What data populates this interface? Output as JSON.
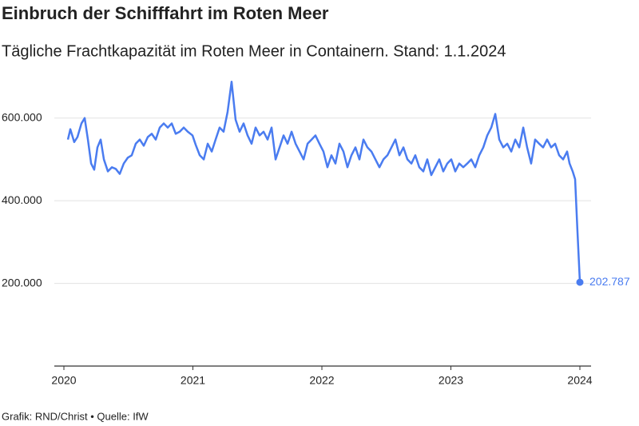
{
  "chart_data": {
    "type": "line",
    "title": "Einbruch der Schifffahrt im Roten Meer",
    "subtitle": "Tägliche Frachtkapazität im Roten Meer in Containern. Stand: 1.1.2024",
    "source": "Grafik: RND/Christ • Quelle: IfW",
    "color": "#4a7cf0",
    "x": [
      2020.031,
      2020.05,
      2020.08,
      2020.105,
      2020.136,
      2020.161,
      2020.186,
      2020.211,
      2020.235,
      2020.26,
      2020.285,
      2020.31,
      2020.341,
      2020.372,
      2020.402,
      2020.433,
      2020.464,
      2020.495,
      2020.526,
      2020.557,
      2020.588,
      2020.619,
      2020.65,
      2020.681,
      2020.712,
      2020.743,
      2020.774,
      2020.805,
      2020.836,
      2020.867,
      2020.898,
      2020.929,
      2020.96,
      2020.997,
      2021.022,
      2021.053,
      2021.084,
      2021.115,
      2021.146,
      2021.176,
      2021.207,
      2021.238,
      2021.269,
      2021.3,
      2021.331,
      2021.362,
      2021.393,
      2021.424,
      2021.455,
      2021.486,
      2021.517,
      2021.548,
      2021.579,
      2021.61,
      2021.641,
      2021.672,
      2021.703,
      2021.734,
      2021.765,
      2021.796,
      2021.827,
      2021.858,
      2021.889,
      2021.92,
      2021.95,
      2021.981,
      2022.012,
      2022.043,
      2022.074,
      2022.105,
      2022.136,
      2022.167,
      2022.198,
      2022.229,
      2022.26,
      2022.291,
      2022.322,
      2022.353,
      2022.384,
      2022.415,
      2022.446,
      2022.477,
      2022.508,
      2022.539,
      2022.57,
      2022.601,
      2022.632,
      2022.663,
      2022.694,
      2022.724,
      2022.755,
      2022.786,
      2022.817,
      2022.848,
      2022.879,
      2022.91,
      2022.941,
      2022.972,
      2023.003,
      2023.034,
      2023.065,
      2023.096,
      2023.127,
      2023.158,
      2023.189,
      2023.22,
      2023.251,
      2023.282,
      2023.313,
      2023.344,
      2023.375,
      2023.406,
      2023.437,
      2023.468,
      2023.499,
      2023.53,
      2023.561,
      2023.591,
      2023.622,
      2023.653,
      2023.684,
      2023.715,
      2023.746,
      2023.777,
      2023.808,
      2023.839,
      2023.87,
      2023.901,
      2023.92,
      2023.944,
      2023.963,
      2023.981,
      2024.0
    ],
    "values": [
      548000,
      573000,
      542000,
      554000,
      587000,
      600000,
      548000,
      490000,
      475000,
      529000,
      548000,
      500000,
      471000,
      481000,
      477000,
      465000,
      490000,
      504000,
      510000,
      538000,
      548000,
      533000,
      554000,
      562000,
      548000,
      577000,
      587000,
      577000,
      587000,
      562000,
      567000,
      577000,
      567000,
      558000,
      535000,
      510000,
      500000,
      538000,
      519000,
      548000,
      577000,
      567000,
      615000,
      688000,
      596000,
      567000,
      587000,
      558000,
      538000,
      577000,
      558000,
      567000,
      548000,
      577000,
      500000,
      529000,
      558000,
      538000,
      567000,
      538000,
      519000,
      500000,
      538000,
      548000,
      558000,
      538000,
      519000,
      481000,
      510000,
      490000,
      538000,
      519000,
      481000,
      510000,
      529000,
      500000,
      548000,
      529000,
      519000,
      500000,
      481000,
      500000,
      510000,
      529000,
      548000,
      510000,
      529000,
      500000,
      490000,
      510000,
      481000,
      471000,
      500000,
      462000,
      481000,
      500000,
      471000,
      490000,
      500000,
      471000,
      490000,
      481000,
      490000,
      500000,
      481000,
      510000,
      529000,
      558000,
      577000,
      610000,
      548000,
      529000,
      538000,
      519000,
      548000,
      529000,
      577000,
      529000,
      490000,
      548000,
      538000,
      529000,
      548000,
      529000,
      538000,
      510000,
      500000,
      519000,
      490000,
      471000,
      452000,
      327000,
      202787
    ],
    "xlim": [
      2020,
      2024
    ],
    "xticks": [
      2020,
      2021,
      2022,
      2023,
      2024
    ],
    "ylim": [
      0,
      700000
    ],
    "yticks": [
      {
        "value": 200000,
        "label": "200.000"
      },
      {
        "value": 400000,
        "label": "400.000"
      },
      {
        "value": 600000,
        "label": "600.000"
      }
    ],
    "grid": true,
    "annotations": [
      {
        "text": "202.787",
        "x": 2024.0,
        "y": 202787
      }
    ]
  }
}
